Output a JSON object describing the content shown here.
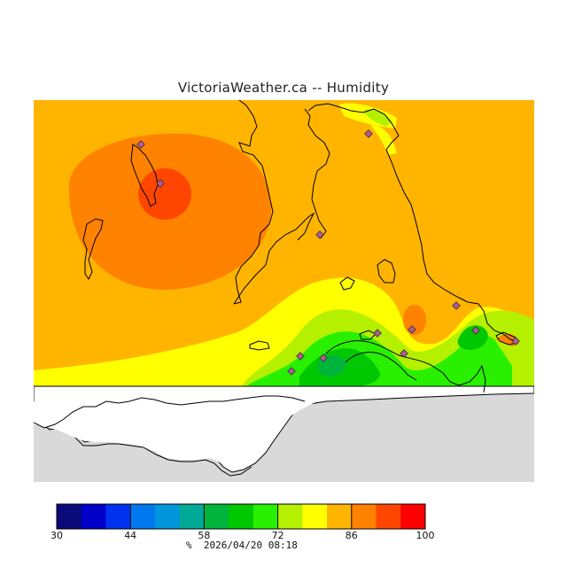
{
  "title": "VictoriaWeather.ca -- Humidity",
  "legend": {
    "min": 30,
    "max": 100,
    "step": 5,
    "tick_labels": [
      "30",
      "44",
      "58",
      "72",
      "86",
      "100"
    ],
    "colors": [
      "#0a0a7a",
      "#0000c8",
      "#0032f0",
      "#0078f0",
      "#0096dc",
      "#00aa96",
      "#00b43c",
      "#00c800",
      "#28f000",
      "#b4f000",
      "#ffff00",
      "#ffb400",
      "#ff8200",
      "#ff4600",
      "#ff0000"
    ]
  },
  "units_symbol": "%",
  "timestamp": "2026/04/20 08:18",
  "colors": {
    "land_no_data": "#d9d9d9",
    "water": "#ffffff",
    "coast": "#000000",
    "station_marker": "#b05a9a"
  }
}
